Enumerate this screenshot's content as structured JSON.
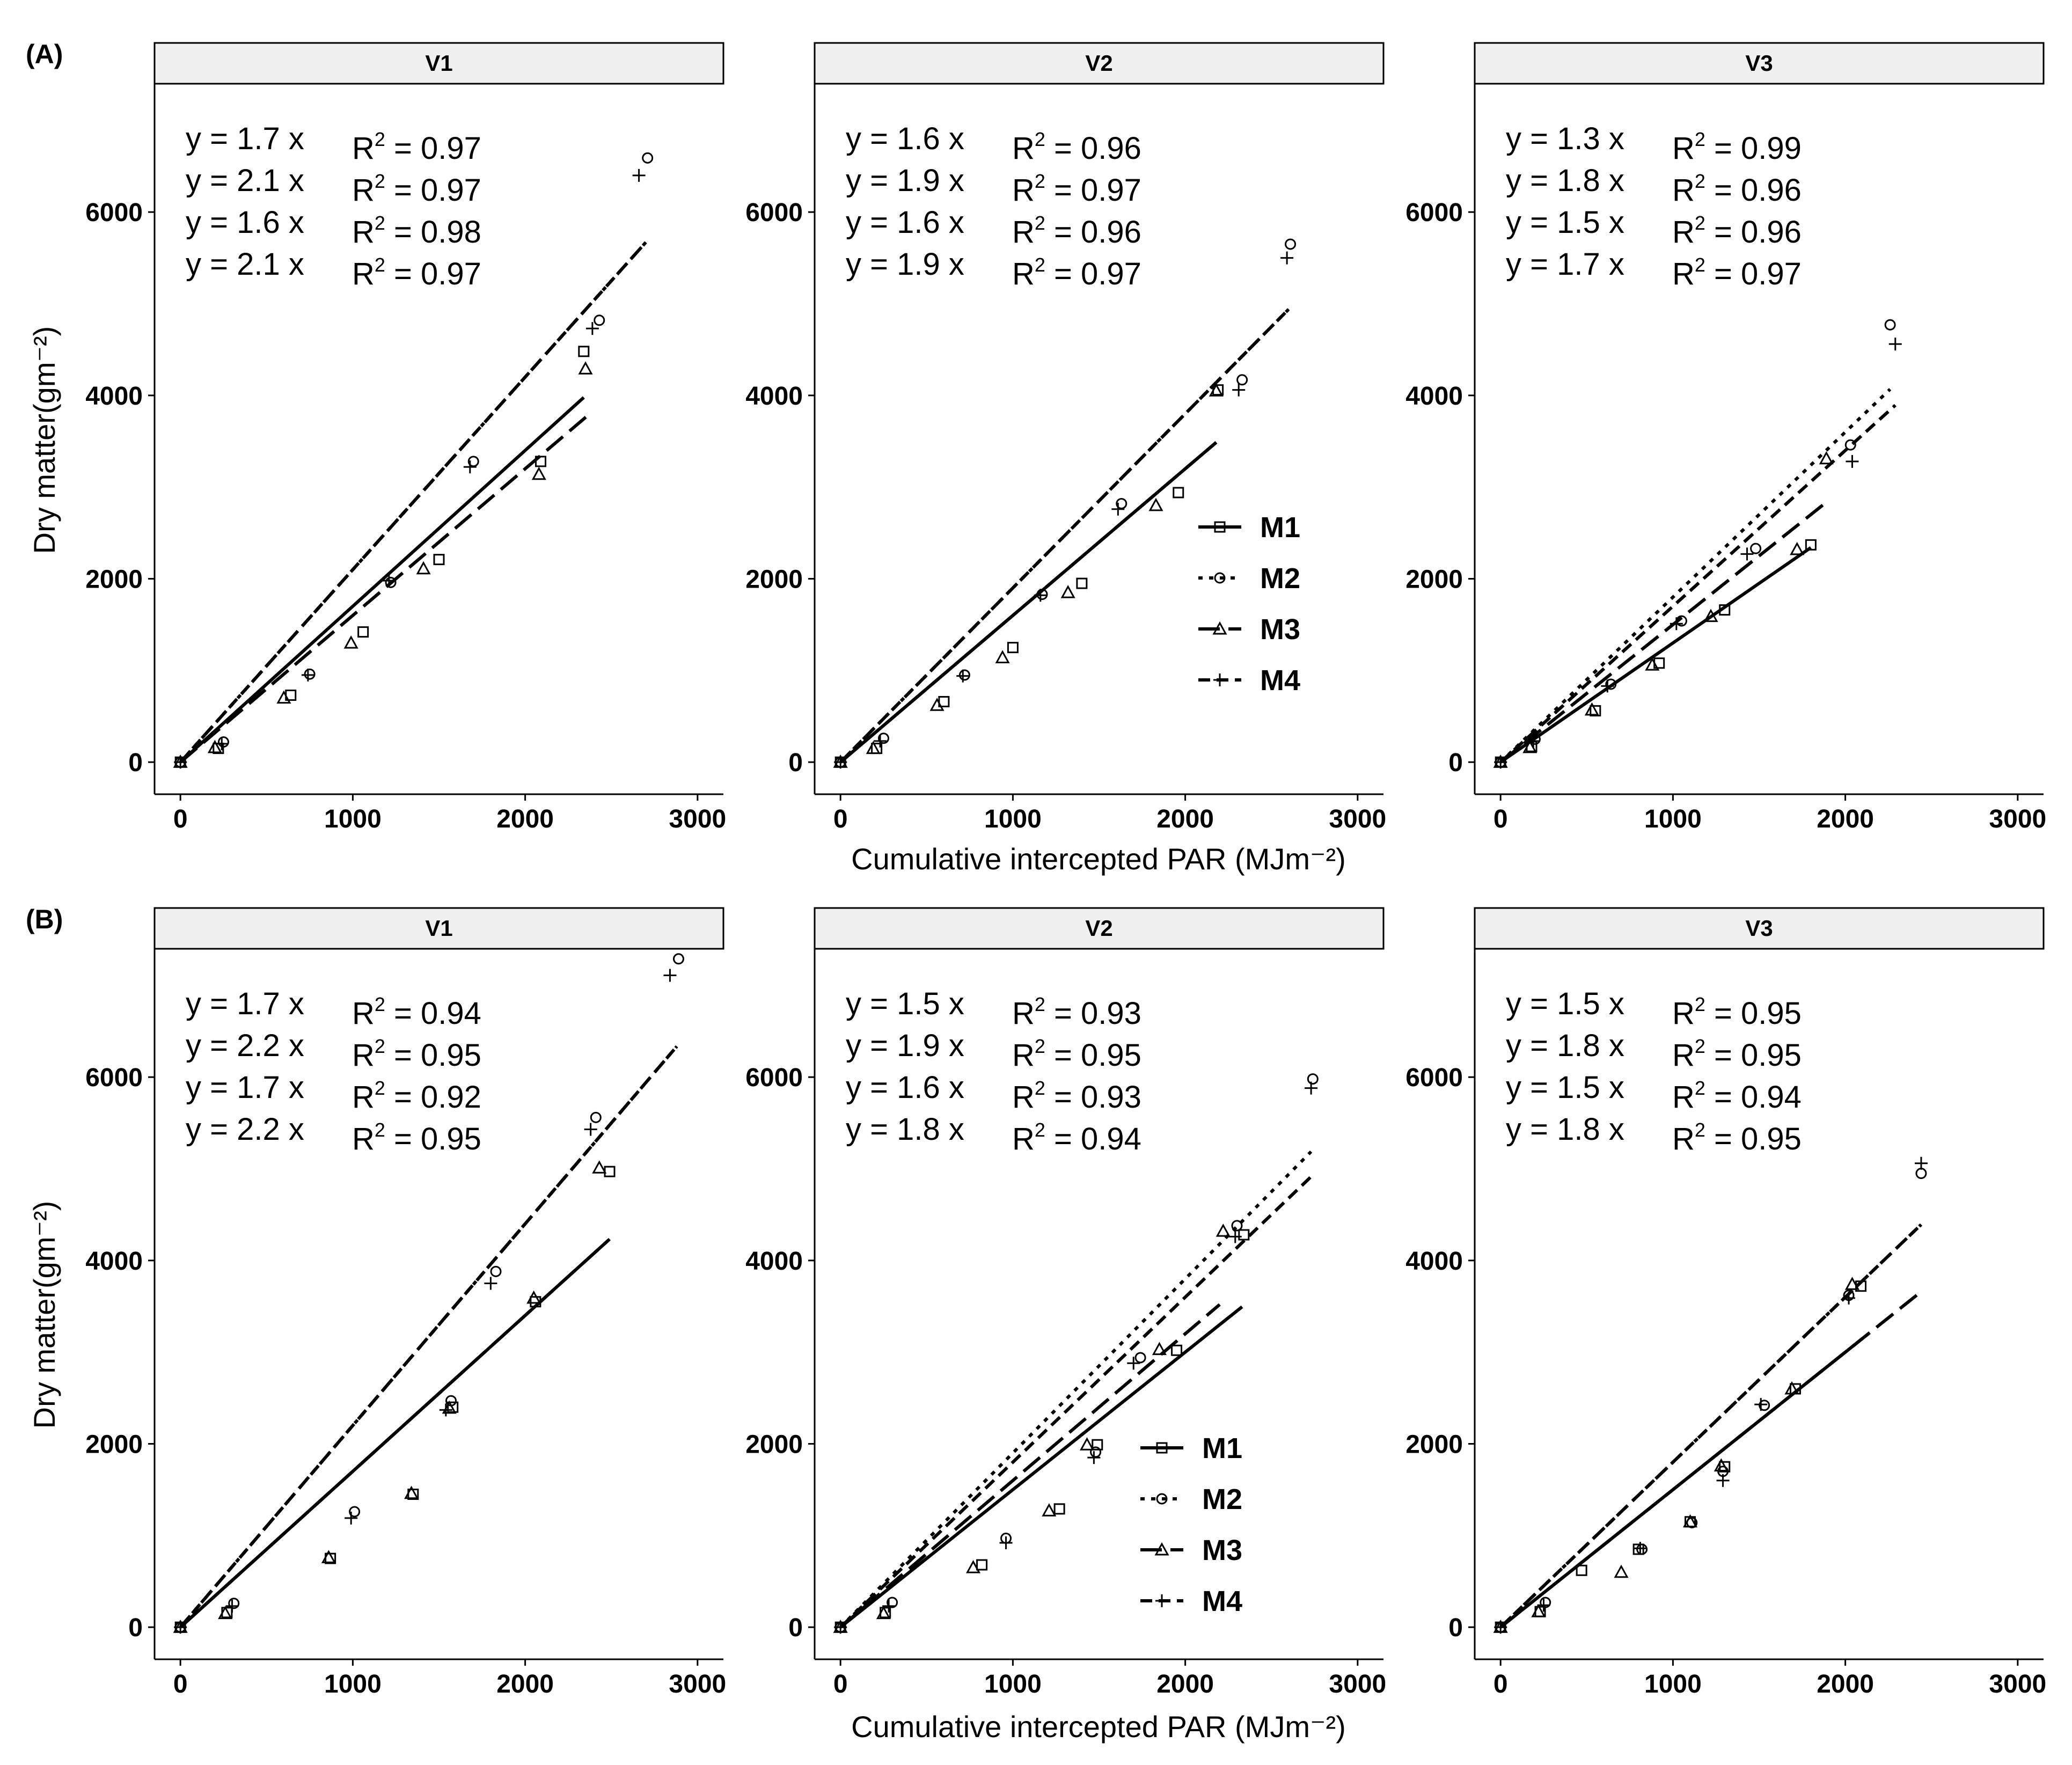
{
  "panel_tags": [
    "(A)",
    "(B)"
  ],
  "xlabel": "Cumulative intercepted PAR (MJm⁻²)",
  "ylabel": "Dry matter(gm⁻²)",
  "legend": {
    "placement": "inside the V2 panel of each row, lower right",
    "entries": [
      "M1",
      "M2",
      "M3",
      "M4"
    ]
  },
  "series_styles": {
    "M1": {
      "line": "solid",
      "marker": "square"
    },
    "M2": {
      "line": "dotted",
      "marker": "circle"
    },
    "M3": {
      "line": "long-dash",
      "marker": "triangle"
    },
    "M4": {
      "line": "dash",
      "marker": "plus"
    }
  },
  "chart_data": [
    {
      "type": "scatter",
      "row": "(A)",
      "strip": "V1",
      "xlim": [
        -150,
        3150
      ],
      "ylim": [
        -350,
        7400
      ],
      "xticks": [
        0,
        1000,
        2000,
        3000
      ],
      "yticks": [
        0,
        2000,
        4000,
        6000
      ],
      "equations": [
        "y = 1.7 x",
        "y = 2.1 x",
        "y = 1.6 x",
        "y = 2.1 x"
      ],
      "r2": [
        "0.97",
        "0.97",
        "0.98",
        "0.97"
      ],
      "series": [
        {
          "name": "M1",
          "slope": 1.7,
          "line_x_max": 2340,
          "points": [
            [
              0,
              0
            ],
            [
              220,
              150
            ],
            [
              640,
              730
            ],
            [
              1060,
              1420
            ],
            [
              1500,
              2210
            ],
            [
              2090,
              3280
            ],
            [
              2340,
              4480
            ]
          ]
        },
        {
          "name": "M2",
          "slope": 2.1,
          "line_x_max": 2700,
          "points": [
            [
              0,
              0
            ],
            [
              250,
              220
            ],
            [
              750,
              960
            ],
            [
              1220,
              1960
            ],
            [
              1700,
              3280
            ],
            [
              2430,
              4820
            ],
            [
              2710,
              6590
            ]
          ]
        },
        {
          "name": "M3",
          "slope": 1.6,
          "line_x_max": 2360,
          "points": [
            [
              0,
              0
            ],
            [
              200,
              160
            ],
            [
              600,
              700
            ],
            [
              990,
              1300
            ],
            [
              1410,
              2110
            ],
            [
              2080,
              3140
            ],
            [
              2350,
              4290
            ]
          ]
        },
        {
          "name": "M4",
          "slope": 2.1,
          "line_x_max": 2700,
          "points": [
            [
              0,
              0
            ],
            [
              240,
              200
            ],
            [
              740,
              950
            ],
            [
              1210,
              1980
            ],
            [
              1680,
              3220
            ],
            [
              2390,
              4730
            ],
            [
              2660,
              6400
            ]
          ]
        }
      ]
    },
    {
      "type": "scatter",
      "row": "(A)",
      "strip": "V2",
      "xlim": [
        -150,
        3150
      ],
      "ylim": [
        -350,
        7400
      ],
      "xticks": [
        0,
        1000,
        2000,
        3000
      ],
      "yticks": [
        0,
        2000,
        4000,
        6000
      ],
      "equations": [
        "y = 1.6 x",
        "y = 1.9 x",
        "y = 1.6 x",
        "y = 1.9 x"
      ],
      "r2": [
        "0.96",
        "0.97",
        "0.96",
        "0.97"
      ],
      "series": [
        {
          "name": "M1",
          "slope": 1.6,
          "line_x_max": 2180,
          "points": [
            [
              0,
              0
            ],
            [
              210,
              150
            ],
            [
              600,
              660
            ],
            [
              1000,
              1250
            ],
            [
              1400,
              1950
            ],
            [
              1960,
              2940
            ],
            [
              2190,
              4060
            ]
          ]
        },
        {
          "name": "M2",
          "slope": 1.9,
          "line_x_max": 2600,
          "points": [
            [
              0,
              0
            ],
            [
              250,
              260
            ],
            [
              720,
              950
            ],
            [
              1170,
              1830
            ],
            [
              1630,
              2820
            ],
            [
              2330,
              4170
            ],
            [
              2610,
              5650
            ]
          ]
        },
        {
          "name": "M3",
          "slope": 1.6,
          "line_x_max": 2180,
          "points": [
            [
              0,
              0
            ],
            [
              190,
              150
            ],
            [
              560,
              620
            ],
            [
              940,
              1140
            ],
            [
              1320,
              1850
            ],
            [
              1830,
              2800
            ],
            [
              2180,
              4050
            ]
          ]
        },
        {
          "name": "M4",
          "slope": 1.9,
          "line_x_max": 2600,
          "points": [
            [
              0,
              0
            ],
            [
              230,
              230
            ],
            [
              710,
              940
            ],
            [
              1160,
              1820
            ],
            [
              1610,
              2760
            ],
            [
              2310,
              4060
            ],
            [
              2590,
              5500
            ]
          ]
        }
      ]
    },
    {
      "type": "scatter",
      "row": "(A)",
      "strip": "V3",
      "xlim": [
        -150,
        3150
      ],
      "ylim": [
        -350,
        7400
      ],
      "xticks": [
        0,
        1000,
        2000,
        3000
      ],
      "yticks": [
        0,
        2000,
        4000,
        6000
      ],
      "equations": [
        "y = 1.3 x",
        "y = 1.8 x",
        "y = 1.5 x",
        "y = 1.7 x"
      ],
      "r2": [
        "0.99",
        "0.96",
        "0.96",
        "0.97"
      ],
      "series": [
        {
          "name": "M1",
          "slope": 1.3,
          "line_x_max": 1800,
          "points": [
            [
              0,
              0
            ],
            [
              180,
              170
            ],
            [
              550,
              560
            ],
            [
              920,
              1080
            ],
            [
              1300,
              1660
            ],
            [
              1800,
              2370
            ]
          ]
        },
        {
          "name": "M2",
          "slope": 1.8,
          "line_x_max": 2260,
          "points": [
            [
              0,
              0
            ],
            [
              200,
              250
            ],
            [
              640,
              850
            ],
            [
              1050,
              1540
            ],
            [
              1480,
              2330
            ],
            [
              2030,
              3460
            ],
            [
              2260,
              4770
            ]
          ]
        },
        {
          "name": "M3",
          "slope": 1.5,
          "line_x_max": 1900,
          "points": [
            [
              0,
              0
            ],
            [
              170,
              160
            ],
            [
              530,
              570
            ],
            [
              880,
              1060
            ],
            [
              1220,
              1590
            ],
            [
              1720,
              2320
            ],
            [
              1890,
              3310
            ]
          ]
        },
        {
          "name": "M4",
          "slope": 1.7,
          "line_x_max": 2290,
          "points": [
            [
              0,
              0
            ],
            [
              190,
              230
            ],
            [
              620,
              830
            ],
            [
              1020,
              1510
            ],
            [
              1430,
              2270
            ],
            [
              2040,
              3280
            ],
            [
              2290,
              4560
            ]
          ]
        }
      ]
    },
    {
      "type": "scatter",
      "row": "(B)",
      "strip": "V1",
      "xlim": [
        -150,
        3150
      ],
      "ylim": [
        -350,
        7400
      ],
      "xticks": [
        0,
        1000,
        2000,
        3000
      ],
      "yticks": [
        0,
        2000,
        4000,
        6000
      ],
      "equations": [
        "y = 1.7 x",
        "y = 2.2 x",
        "y = 1.7 x",
        "y = 2.2 x"
      ],
      "r2": [
        "0.94",
        "0.95",
        "0.92",
        "0.95"
      ],
      "series": [
        {
          "name": "M1",
          "slope": 1.7,
          "line_x_max": 2490,
          "points": [
            [
              0,
              0
            ],
            [
              270,
              160
            ],
            [
              870,
              750
            ],
            [
              1350,
              1450
            ],
            [
              1580,
              2400
            ],
            [
              2060,
              3550
            ],
            [
              2490,
              4970
            ]
          ]
        },
        {
          "name": "M2",
          "slope": 2.2,
          "line_x_max": 2880,
          "points": [
            [
              0,
              0
            ],
            [
              310,
              260
            ],
            [
              1010,
              1260
            ],
            [
              1570,
              2470
            ],
            [
              1830,
              3880
            ],
            [
              2410,
              5560
            ],
            [
              2890,
              7290
            ]
          ]
        },
        {
          "name": "M3",
          "slope": 1.7,
          "line_x_max": 2480,
          "points": [
            [
              0,
              0
            ],
            [
              260,
              150
            ],
            [
              860,
              760
            ],
            [
              1340,
              1460
            ],
            [
              1560,
              2390
            ],
            [
              2050,
              3590
            ],
            [
              2430,
              5010
            ]
          ]
        },
        {
          "name": "M4",
          "slope": 2.2,
          "line_x_max": 2880,
          "points": [
            [
              0,
              0
            ],
            [
              300,
              230
            ],
            [
              990,
              1190
            ],
            [
              1540,
              2370
            ],
            [
              1800,
              3750
            ],
            [
              2380,
              5430
            ],
            [
              2840,
              7110
            ]
          ]
        }
      ]
    },
    {
      "type": "scatter",
      "row": "(B)",
      "strip": "V2",
      "xlim": [
        -150,
        3150
      ],
      "ylim": [
        -350,
        7400
      ],
      "xticks": [
        0,
        1000,
        2000,
        3000
      ],
      "yticks": [
        0,
        2000,
        4000,
        6000
      ],
      "equations": [
        "y = 1.5 x",
        "y = 1.9 x",
        "y = 1.6 x",
        "y = 1.8 x"
      ],
      "r2": [
        "0.93",
        "0.95",
        "0.93",
        "0.94"
      ],
      "series": [
        {
          "name": "M1",
          "slope": 1.5,
          "line_x_max": 2330,
          "points": [
            [
              0,
              0
            ],
            [
              260,
              160
            ],
            [
              820,
              680
            ],
            [
              1270,
              1290
            ],
            [
              1490,
              1990
            ],
            [
              1950,
              3020
            ],
            [
              2340,
              4280
            ]
          ]
        },
        {
          "name": "M2",
          "slope": 1.9,
          "line_x_max": 2730,
          "points": [
            [
              0,
              0
            ],
            [
              300,
              270
            ],
            [
              960,
              970
            ],
            [
              1480,
              1910
            ],
            [
              1740,
              2940
            ],
            [
              2300,
              4380
            ],
            [
              2740,
              5980
            ]
          ]
        },
        {
          "name": "M3",
          "slope": 1.6,
          "line_x_max": 2200,
          "points": [
            [
              0,
              0
            ],
            [
              250,
              150
            ],
            [
              770,
              650
            ],
            [
              1210,
              1270
            ],
            [
              1430,
              1990
            ],
            [
              1850,
              3030
            ],
            [
              2220,
              4320
            ]
          ]
        },
        {
          "name": "M4",
          "slope": 1.8,
          "line_x_max": 2730,
          "points": [
            [
              0,
              0
            ],
            [
              280,
              230
            ],
            [
              960,
              920
            ],
            [
              1470,
              1850
            ],
            [
              1700,
              2880
            ],
            [
              2290,
              4260
            ],
            [
              2730,
              5880
            ]
          ]
        }
      ]
    },
    {
      "type": "scatter",
      "row": "(B)",
      "strip": "V3",
      "xlim": [
        -150,
        3150
      ],
      "ylim": [
        -350,
        7400
      ],
      "xticks": [
        0,
        1000,
        2000,
        3000
      ],
      "yticks": [
        0,
        2000,
        4000,
        6000
      ],
      "equations": [
        "y = 1.5 x",
        "y = 1.8 x",
        "y = 1.5 x",
        "y = 1.8 x"
      ],
      "r2": [
        "0.95",
        "0.95",
        "0.94",
        "0.95"
      ],
      "series": [
        {
          "name": "M1",
          "slope": 1.5,
          "line_x_max": 2100,
          "points": [
            [
              0,
              0
            ],
            [
              230,
              170
            ],
            [
              470,
              620
            ],
            [
              800,
              850
            ],
            [
              1100,
              1150
            ],
            [
              1300,
              1750
            ],
            [
              1710,
              2600
            ],
            [
              2090,
              3720
            ]
          ]
        },
        {
          "name": "M2",
          "slope": 1.8,
          "line_x_max": 2440,
          "points": [
            [
              0,
              0
            ],
            [
              260,
              270
            ],
            [
              820,
              850
            ],
            [
              1110,
              1140
            ],
            [
              1290,
              1700
            ],
            [
              1530,
              2420
            ],
            [
              2020,
              3620
            ],
            [
              2440,
              4950
            ]
          ]
        },
        {
          "name": "M3",
          "slope": 1.5,
          "line_x_max": 2440,
          "points": [
            [
              0,
              0
            ],
            [
              220,
              170
            ],
            [
              700,
              600
            ],
            [
              1100,
              1150
            ],
            [
              1280,
              1760
            ],
            [
              1690,
              2600
            ],
            [
              2040,
              3740
            ]
          ]
        },
        {
          "name": "M4",
          "slope": 1.8,
          "line_x_max": 2440,
          "points": [
            [
              0,
              0
            ],
            [
              250,
              240
            ],
            [
              810,
              860
            ],
            [
              1290,
              1600
            ],
            [
              1510,
              2430
            ],
            [
              2020,
              3590
            ],
            [
              2440,
              5060
            ]
          ]
        }
      ]
    }
  ]
}
